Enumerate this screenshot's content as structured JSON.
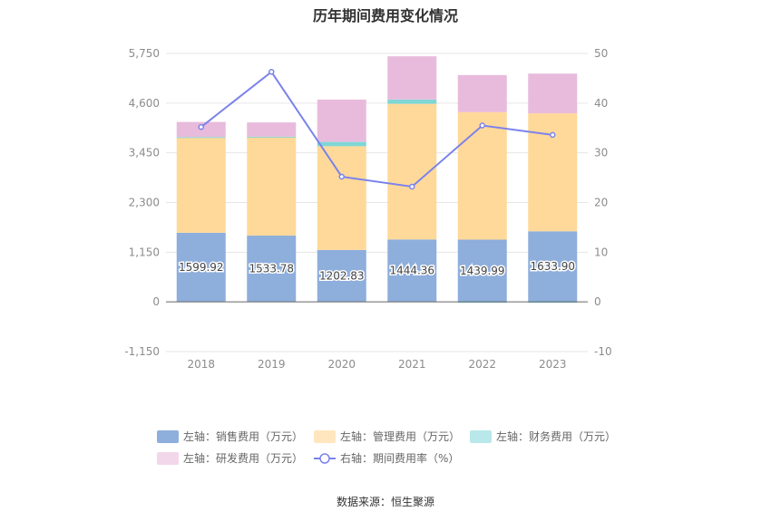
{
  "chart_data": {
    "type": "bar",
    "title": "历年期间费用变化情况",
    "source_note": "数据来源：恒生聚源",
    "categories": [
      "2018",
      "2019",
      "2020",
      "2021",
      "2022",
      "2023"
    ],
    "left_axis": {
      "min": -1150,
      "max": 5750,
      "ticks": [
        -1150,
        0,
        1150,
        2300,
        3450,
        4600,
        5750
      ],
      "tick_labels": [
        "-1,150",
        "0",
        "1,150",
        "2,300",
        "3,450",
        "4,600",
        "5,750"
      ]
    },
    "right_axis": {
      "min": -10,
      "max": 50,
      "ticks": [
        -10,
        0,
        10,
        20,
        30,
        40,
        50
      ],
      "tick_labels": [
        "-10",
        "0",
        "10",
        "20",
        "30",
        "40",
        "50"
      ]
    },
    "series": [
      {
        "name": "左轴：销售费用（万元）",
        "kind": "bar",
        "axis": "left",
        "color": "#8eaedc",
        "values": [
          1599.92,
          1533.78,
          1202.83,
          1444.36,
          1439.99,
          1633.9
        ],
        "labels": [
          "1599.92",
          "1533.78",
          "1202.83",
          "1444.36",
          "1439.99",
          "1633.90"
        ]
      },
      {
        "name": "左轴：管理费用（万元）",
        "kind": "bar",
        "axis": "left",
        "color": "#ffd999",
        "legend_color": "#ffe6bf",
        "values": [
          2200,
          2280,
          2400,
          3140,
          2950,
          2730
        ]
      },
      {
        "name": "左轴：财务费用（万元）",
        "kind": "bar",
        "axis": "left",
        "color": "#7fd6d6",
        "legend_color": "#b8e8ea",
        "values": [
          15,
          10,
          100,
          100,
          -20,
          -15
        ]
      },
      {
        "name": "左轴：研发费用（万元）",
        "kind": "bar",
        "axis": "left",
        "color": "#e8bbdc",
        "legend_color": "#f2d7ea",
        "values": [
          350,
          330,
          980,
          1000,
          860,
          920
        ]
      },
      {
        "name": "右轴：期间费用率（%）",
        "kind": "line",
        "axis": "right",
        "color": "#7b83eb",
        "values": [
          35.2,
          46.3,
          25.2,
          23.2,
          35.5,
          33.6
        ]
      }
    ]
  }
}
